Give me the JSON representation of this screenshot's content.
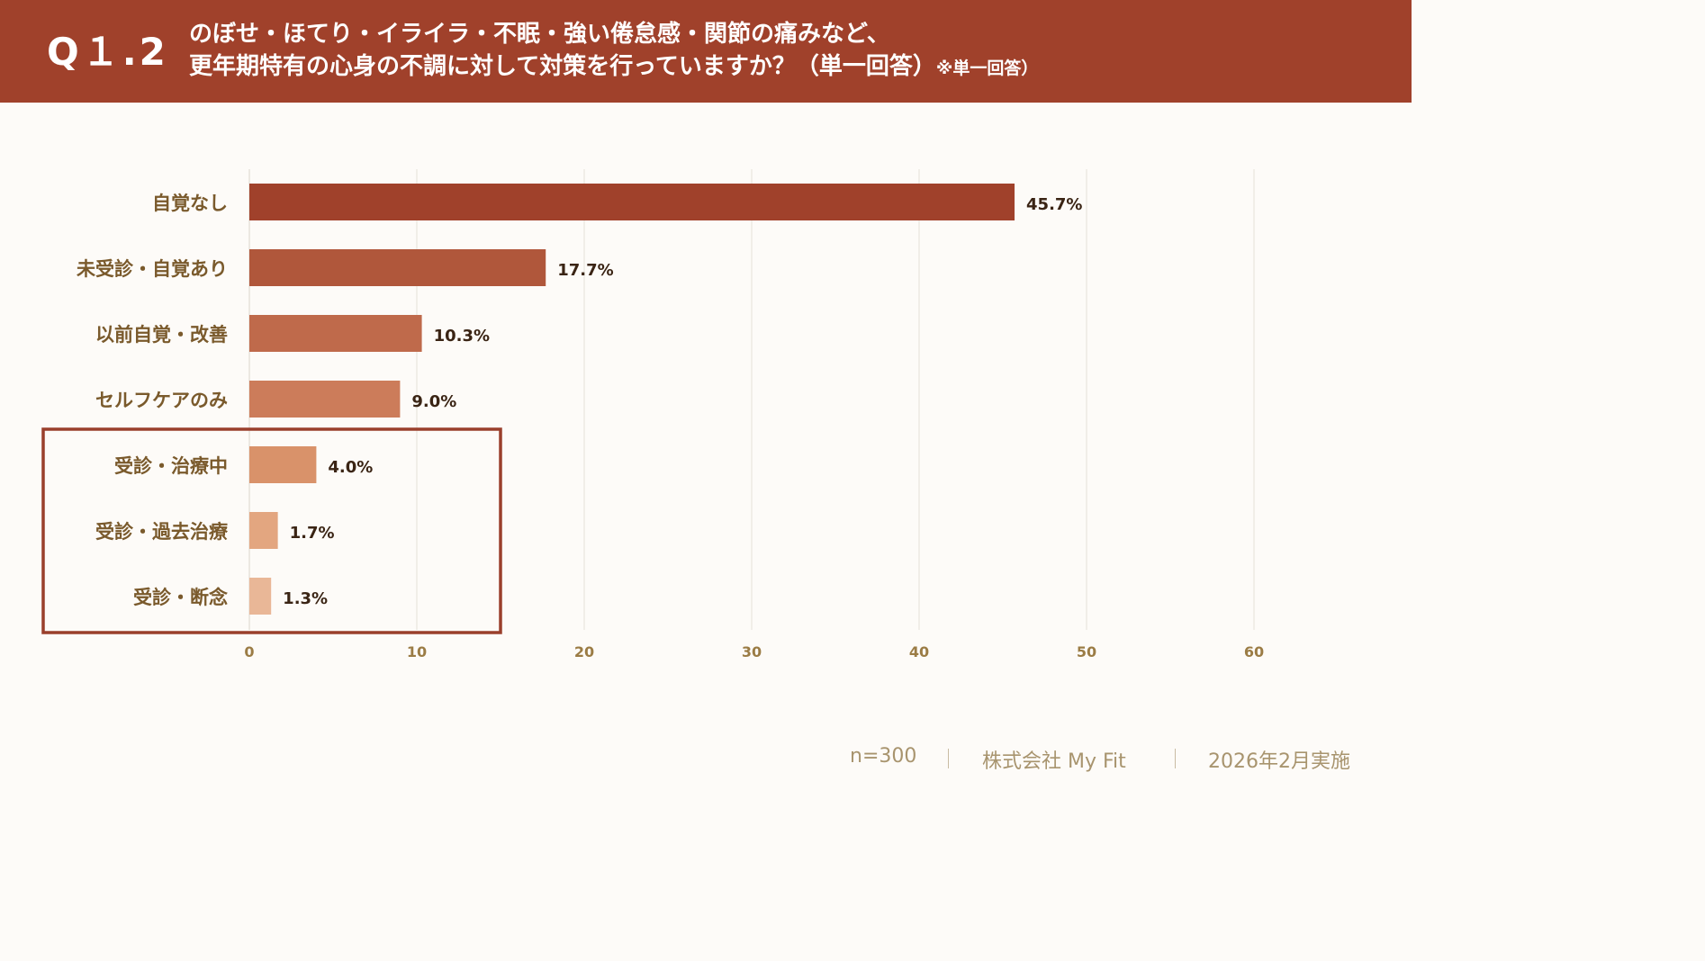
{
  "header": {
    "question_number": "Q１.2",
    "title_line1": "のぼせ・ほてり・イライラ・不眠・強い倦怠感・関節の痛みなど、",
    "title_line2": "更年期特有の心身の不調に対して対策を行っていますか？（単一回答）",
    "title_note": "※単一回答）"
  },
  "chart_data": {
    "type": "bar",
    "orientation": "horizontal",
    "categories": [
      "自覚なし",
      "未受診・自覚あり",
      "以前自覚・改善",
      "セルフケアのみ",
      "受診・治療中",
      "受診・過去治療",
      "受診・断念"
    ],
    "values": [
      45.7,
      17.7,
      10.3,
      9.0,
      4.0,
      1.7,
      1.3
    ],
    "value_labels": [
      "45.7%",
      "17.7%",
      "10.3%",
      "9.0%",
      "4.0%",
      "1.7%",
      "1.3%"
    ],
    "bar_colors": [
      "#a0412b",
      "#b0573b",
      "#bf6a4b",
      "#cc7c5a",
      "#d9926a",
      "#e3a680",
      "#e9b797"
    ],
    "x_ticks": [
      0,
      10,
      20,
      30,
      40,
      50,
      60
    ],
    "xlim": [
      0,
      60
    ],
    "grid": true,
    "highlight_box": {
      "categories": [
        "受診・治療中",
        "受診・過去治療",
        "受診・断念"
      ],
      "color": "#9a3f2c"
    },
    "label_color": "#7a5a2c",
    "value_label_color": "#3a2414",
    "tick_color": "#9b7c45"
  },
  "footer": {
    "sample": "n=300",
    "company": "株式会社 My Fit",
    "date": "2026年2月実施"
  }
}
